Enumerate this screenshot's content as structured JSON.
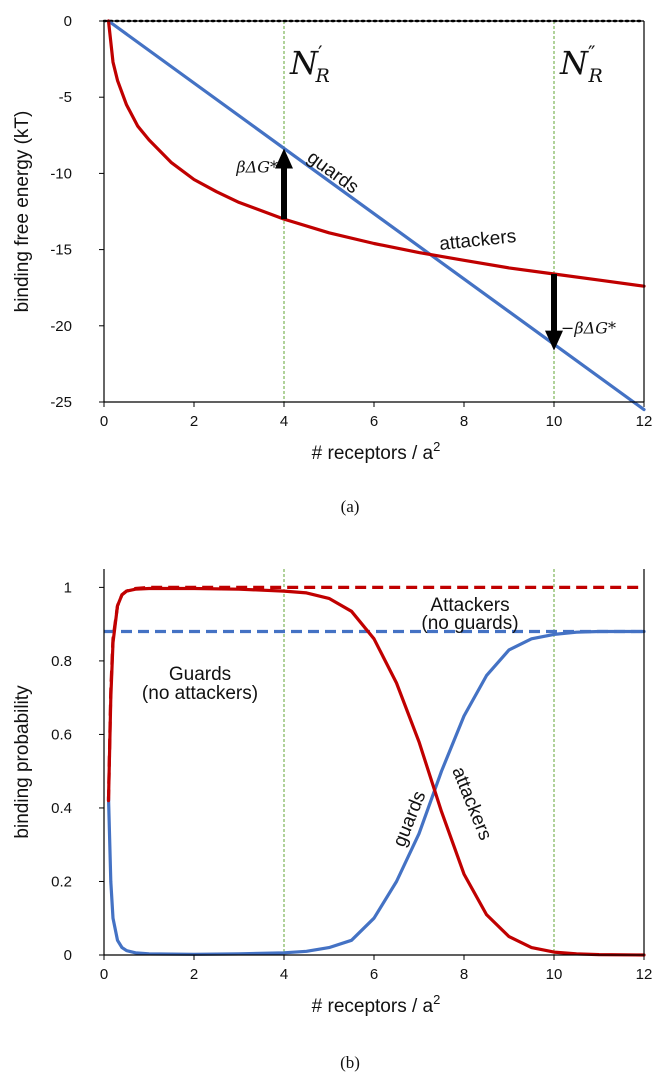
{
  "colors": {
    "red": "#C00000",
    "blue": "#4472C4",
    "green": "#70AD47",
    "axis": "#000000"
  },
  "chart_data": [
    {
      "type": "line",
      "caption": "(a)",
      "xlabel": "# receptors / a",
      "xlabel_sup": "2",
      "ylabel": "binding free energy (kT)",
      "xlim": [
        0,
        12
      ],
      "ylim": [
        -25,
        0
      ],
      "xticks": [
        "0",
        "2",
        "4",
        "6",
        "8",
        "10",
        "12"
      ],
      "yticks": [
        "0",
        "-5",
        "-10",
        "-15",
        "-20",
        "-25"
      ],
      "vlines": [
        4,
        10
      ],
      "vline_labels": [
        {
          "x": 4,
          "base": "N",
          "sub": "R",
          "prime": "′"
        },
        {
          "x": 10,
          "base": "N",
          "sub": "R",
          "prime": "″"
        }
      ],
      "arrows": [
        {
          "x": 4,
          "from": -13.0,
          "to": -8.5,
          "label": "βΔG*"
        },
        {
          "x": 10,
          "from": -16.6,
          "to": -21.5,
          "label": "−βΔG*"
        }
      ],
      "series": [
        {
          "name": "guards",
          "color": "blue",
          "style": "solid",
          "label_text": "guards",
          "x": [
            0.1,
            12
          ],
          "y": [
            0,
            -25.5
          ]
        },
        {
          "name": "attackers",
          "color": "red",
          "style": "solid",
          "label_text": "attackers",
          "x": [
            0.1,
            0.2,
            0.3,
            0.5,
            0.75,
            1,
            1.5,
            2,
            2.5,
            3,
            4,
            5,
            6,
            7,
            8,
            9,
            10,
            11,
            12
          ],
          "y": [
            0,
            -2.7,
            -3.9,
            -5.5,
            -6.9,
            -7.8,
            -9.3,
            -10.4,
            -11.2,
            -11.9,
            -13.0,
            -13.9,
            -14.6,
            -15.2,
            -15.7,
            -16.2,
            -16.6,
            -17.0,
            -17.4
          ]
        },
        {
          "name": "zero",
          "color": "axis",
          "style": "dotted",
          "x": [
            0,
            12
          ],
          "y": [
            0,
            0
          ]
        }
      ]
    },
    {
      "type": "line",
      "caption": "(b)",
      "xlabel": "# receptors / a",
      "xlabel_sup": "2",
      "ylabel": "binding probability",
      "xlim": [
        0,
        12
      ],
      "ylim": [
        0,
        1.05
      ],
      "xticks": [
        "0",
        "2",
        "4",
        "6",
        "8",
        "10",
        "12"
      ],
      "yticks": [
        "0",
        "0.2",
        "0.4",
        "0.6",
        "0.8",
        "1"
      ],
      "vlines": [
        4,
        10
      ],
      "series": [
        {
          "name": "attackers",
          "color": "red",
          "style": "solid",
          "label_text": "attackers",
          "x": [
            0.1,
            0.15,
            0.2,
            0.3,
            0.4,
            0.5,
            0.7,
            1,
            2,
            3,
            4,
            4.5,
            5,
            5.5,
            6,
            6.5,
            7,
            7.5,
            8,
            8.5,
            9,
            9.5,
            10,
            10.5,
            11,
            12
          ],
          "y": [
            0.42,
            0.7,
            0.85,
            0.95,
            0.98,
            0.99,
            0.995,
            0.997,
            0.997,
            0.995,
            0.99,
            0.985,
            0.97,
            0.935,
            0.86,
            0.74,
            0.58,
            0.39,
            0.22,
            0.11,
            0.05,
            0.02,
            0.008,
            0.003,
            0.001,
            0
          ]
        },
        {
          "name": "guards",
          "color": "blue",
          "style": "solid",
          "label_text": "guards",
          "x": [
            0.1,
            0.15,
            0.2,
            0.3,
            0.4,
            0.5,
            0.7,
            1,
            2,
            3,
            4,
            4.5,
            5,
            5.5,
            6,
            6.5,
            7,
            7.5,
            8,
            8.5,
            9,
            9.5,
            10,
            10.5,
            11,
            12
          ],
          "y": [
            0.43,
            0.2,
            0.1,
            0.04,
            0.02,
            0.012,
            0.006,
            0.003,
            0.002,
            0.003,
            0.006,
            0.01,
            0.02,
            0.04,
            0.1,
            0.2,
            0.33,
            0.5,
            0.65,
            0.76,
            0.83,
            0.86,
            0.872,
            0.878,
            0.88,
            0.88
          ]
        },
        {
          "name": "Attackers (no guards)",
          "color": "red",
          "style": "dashed",
          "label_text": "Attackers",
          "label_sub": "(no guards)",
          "x": [
            0.1,
            0.15,
            0.2,
            0.3,
            0.4,
            0.5,
            0.7,
            1,
            12
          ],
          "y": [
            0.42,
            0.72,
            0.86,
            0.95,
            0.98,
            0.99,
            0.997,
            1.0,
            1.0
          ]
        },
        {
          "name": "Guards (no attackers)",
          "color": "blue",
          "style": "dashed",
          "label_text": "Guards",
          "label_sub": "(no attackers)",
          "x": [
            0,
            12
          ],
          "y": [
            0.88,
            0.88
          ]
        }
      ]
    }
  ]
}
